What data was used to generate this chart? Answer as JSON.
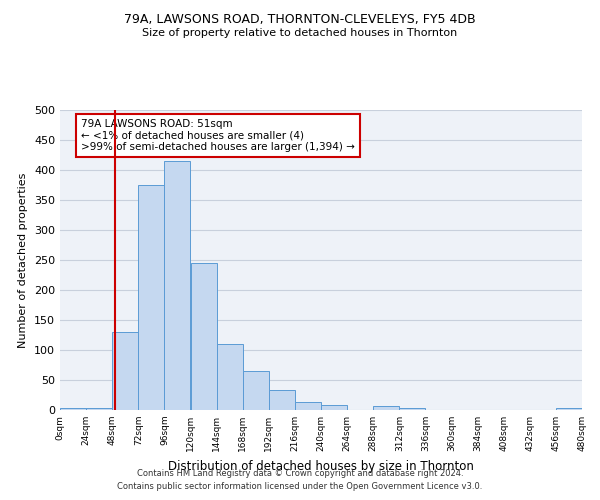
{
  "title1": "79A, LAWSONS ROAD, THORNTON-CLEVELEYS, FY5 4DB",
  "title2": "Size of property relative to detached houses in Thornton",
  "xlabel": "Distribution of detached houses by size in Thornton",
  "ylabel": "Number of detached properties",
  "bin_edges": [
    0,
    24,
    48,
    72,
    96,
    120,
    144,
    168,
    192,
    216,
    240,
    264,
    288,
    312,
    336,
    360,
    384,
    408,
    432,
    456,
    480
  ],
  "bar_heights": [
    3,
    3,
    130,
    375,
    415,
    245,
    110,
    65,
    33,
    13,
    8,
    0,
    7,
    4,
    0,
    0,
    0,
    0,
    0,
    3
  ],
  "bar_color": "#c5d8f0",
  "bar_edge_color": "#5b9bd5",
  "background_color": "#eef2f8",
  "grid_color": "#c8d0dc",
  "property_x": 51,
  "property_line_color": "#cc0000",
  "annotation_text": "79A LAWSONS ROAD: 51sqm\n← <1% of detached houses are smaller (4)\n>99% of semi-detached houses are larger (1,394) →",
  "annotation_box_color": "#cc0000",
  "ylim": [
    0,
    500
  ],
  "xlim": [
    0,
    480
  ],
  "tick_labels": [
    "0sqm",
    "24sqm",
    "48sqm",
    "72sqm",
    "96sqm",
    "120sqm",
    "144sqm",
    "168sqm",
    "192sqm",
    "216sqm",
    "240sqm",
    "264sqm",
    "288sqm",
    "312sqm",
    "336sqm",
    "360sqm",
    "384sqm",
    "408sqm",
    "432sqm",
    "456sqm",
    "480sqm"
  ],
  "footer1": "Contains HM Land Registry data © Crown copyright and database right 2024.",
  "footer2": "Contains public sector information licensed under the Open Government Licence v3.0."
}
